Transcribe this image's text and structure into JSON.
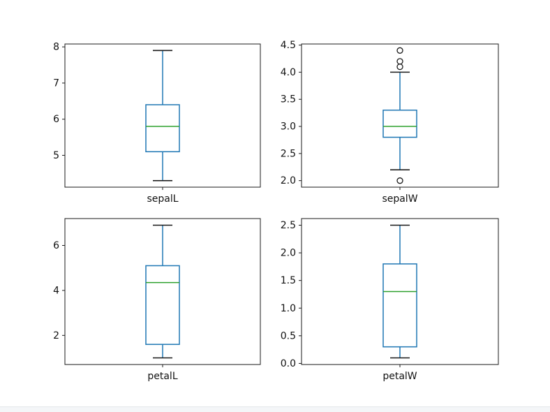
{
  "figure": {
    "background": "#ffffff",
    "bottom_strip_color": "#f4f6f8"
  },
  "chart_data": {
    "type": "boxplot",
    "layout": "2x2-grid",
    "title": "",
    "grid": false,
    "legend": false,
    "colors": {
      "box_line": "#1f77b4",
      "whisker_line": "#1f77b4",
      "median_line": "#2ca02c",
      "whisker_cap": "#1a1a1a",
      "outlier_marker": "#1a1a1a",
      "axes_edge": "#1a1a1a",
      "tick_text": "#111111"
    },
    "plots": [
      {
        "label": "sepalL",
        "ylim": [
          4.12,
          8.08
        ],
        "yticks": [
          {
            "value": 5,
            "label": "5"
          },
          {
            "value": 6,
            "label": "6"
          },
          {
            "value": 7,
            "label": "7"
          },
          {
            "value": 8,
            "label": "8"
          }
        ],
        "box": {
          "whisker_low": 4.3,
          "q1": 5.1,
          "median": 5.8,
          "q3": 6.4,
          "whisker_high": 7.9
        },
        "outliers": []
      },
      {
        "label": "sepalW",
        "ylim": [
          1.88,
          4.52
        ],
        "yticks": [
          {
            "value": 2.0,
            "label": "2.0"
          },
          {
            "value": 2.5,
            "label": "2.5"
          },
          {
            "value": 3.0,
            "label": "3.0"
          },
          {
            "value": 3.5,
            "label": "3.5"
          },
          {
            "value": 4.0,
            "label": "4.0"
          },
          {
            "value": 4.5,
            "label": "4.5"
          }
        ],
        "box": {
          "whisker_low": 2.2,
          "q1": 2.8,
          "median": 3.0,
          "q3": 3.3,
          "whisker_high": 4.0
        },
        "outliers": [
          4.4,
          4.2,
          4.1,
          2.0
        ]
      },
      {
        "label": "petalL",
        "ylim": [
          0.705,
          7.195
        ],
        "yticks": [
          {
            "value": 2,
            "label": "2"
          },
          {
            "value": 4,
            "label": "4"
          },
          {
            "value": 6,
            "label": "6"
          }
        ],
        "box": {
          "whisker_low": 1.0,
          "q1": 1.6,
          "median": 4.35,
          "q3": 5.1,
          "whisker_high": 6.9
        },
        "outliers": []
      },
      {
        "label": "petalW",
        "ylim": [
          -0.02,
          2.62
        ],
        "yticks": [
          {
            "value": 0.0,
            "label": "0.0"
          },
          {
            "value": 0.5,
            "label": "0.5"
          },
          {
            "value": 1.0,
            "label": "1.0"
          },
          {
            "value": 1.5,
            "label": "1.5"
          },
          {
            "value": 2.0,
            "label": "2.0"
          },
          {
            "value": 2.5,
            "label": "2.5"
          }
        ],
        "box": {
          "whisker_low": 0.1,
          "q1": 0.3,
          "median": 1.3,
          "q3": 1.8,
          "whisker_high": 2.5
        },
        "outliers": []
      }
    ]
  }
}
